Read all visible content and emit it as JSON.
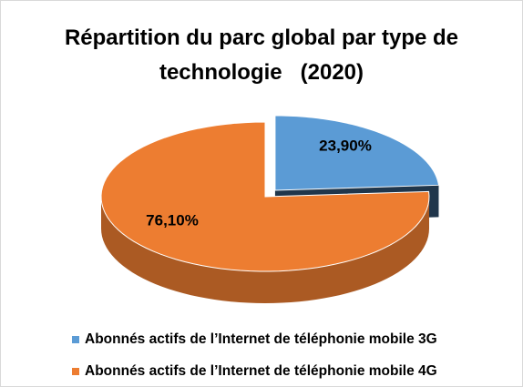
{
  "chart_data": {
    "type": "pie",
    "title": "Répartition du parc global par type de technologie   (2020)",
    "categories": [
      "Abonnés actifs de l’Internet de téléphonie mobile 3G",
      "Abonnés actifs de l’Internet de téléphonie mobile 4G"
    ],
    "values": [
      23.9,
      76.1
    ],
    "value_labels": [
      "23,90%",
      "76,10%"
    ],
    "colors": [
      "#5b9bd5",
      "#ed7d31"
    ],
    "legend": "bottom"
  }
}
